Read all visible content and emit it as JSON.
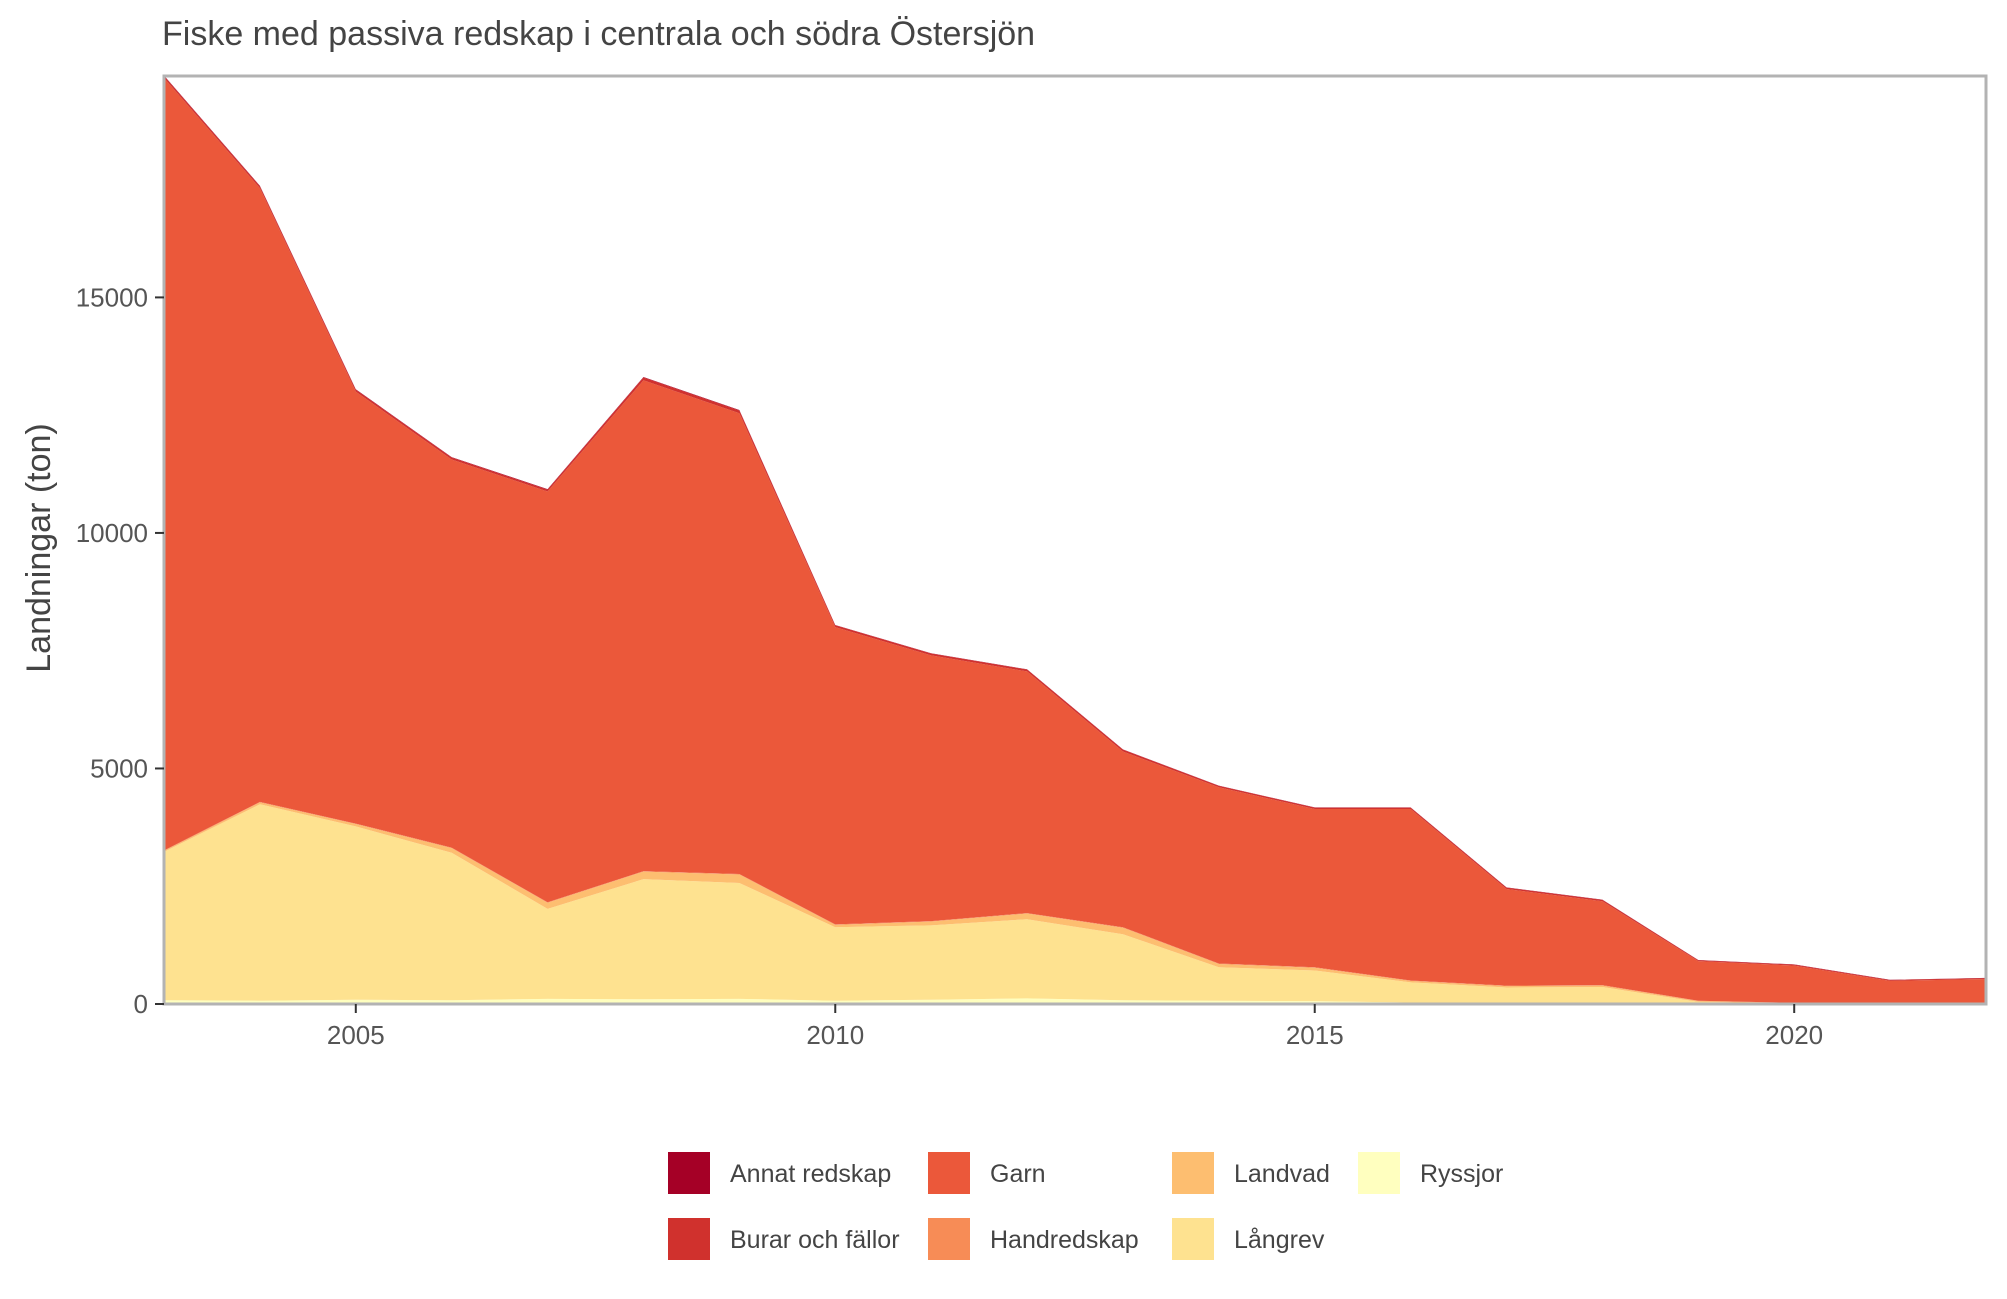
{
  "chart_data": {
    "type": "area",
    "stacked": true,
    "title": "Fiske med passiva redskap i centrala och södra Östersjön",
    "xlabel": "",
    "ylabel": "Landningar (ton)",
    "xlim": [
      2003,
      2022
    ],
    "ylim": [
      0,
      19700
    ],
    "x_ticks": [
      2005,
      2010,
      2015,
      2020
    ],
    "y_ticks": [
      0,
      5000,
      10000,
      15000
    ],
    "grid": false,
    "legend_position": "bottom",
    "x": [
      2003,
      2004,
      2005,
      2006,
      2007,
      2008,
      2009,
      2010,
      2011,
      2012,
      2013,
      2014,
      2015,
      2016,
      2017,
      2018,
      2019,
      2020,
      2021,
      2022
    ],
    "stack_order": [
      "Ryssjor",
      "Långrev",
      "Landvad",
      "Handredskap",
      "Garn",
      "Burar och fällor",
      "Annat redskap"
    ],
    "series": [
      {
        "name": "Annat redskap",
        "color": "#a50026",
        "values": [
          10,
          10,
          10,
          10,
          10,
          10,
          10,
          5,
          5,
          5,
          5,
          5,
          5,
          5,
          5,
          5,
          5,
          5,
          5,
          5
        ]
      },
      {
        "name": "Burar och fällor",
        "color": "#d0312d",
        "values": [
          40,
          40,
          40,
          40,
          40,
          60,
          60,
          40,
          40,
          40,
          40,
          30,
          30,
          30,
          30,
          30,
          20,
          20,
          20,
          20
        ]
      },
      {
        "name": "Garn",
        "color": "#eb583a",
        "values": [
          16400,
          13030,
          9170,
          8240,
          8720,
          10420,
          9780,
          6310,
          5640,
          5130,
          3730,
          3740,
          3360,
          3640,
          2050,
          1780,
          840,
          790,
          470,
          510
        ]
      },
      {
        "name": "Handredskap",
        "color": "#f78c56",
        "values": [
          10,
          10,
          10,
          10,
          10,
          10,
          10,
          10,
          10,
          10,
          10,
          10,
          10,
          10,
          10,
          10,
          5,
          5,
          5,
          5
        ]
      },
      {
        "name": "Landvad",
        "color": "#fdbe70",
        "values": [
          20,
          40,
          50,
          100,
          130,
          160,
          180,
          50,
          80,
          120,
          140,
          70,
          60,
          30,
          30,
          30,
          20,
          10,
          5,
          5
        ]
      },
      {
        "name": "Långrev",
        "color": "#fee290",
        "values": [
          3150,
          4170,
          3680,
          3130,
          1910,
          2550,
          2460,
          1560,
          1580,
          1680,
          1400,
          710,
          650,
          430,
          320,
          330,
          40,
          5,
          5,
          5
        ]
      },
      {
        "name": "Ryssjor",
        "color": "#ffffbf",
        "values": [
          80,
          70,
          90,
          80,
          110,
          100,
          110,
          70,
          90,
          120,
          80,
          70,
          60,
          30,
          30,
          30,
          5,
          5,
          5,
          5
        ]
      }
    ]
  }
}
